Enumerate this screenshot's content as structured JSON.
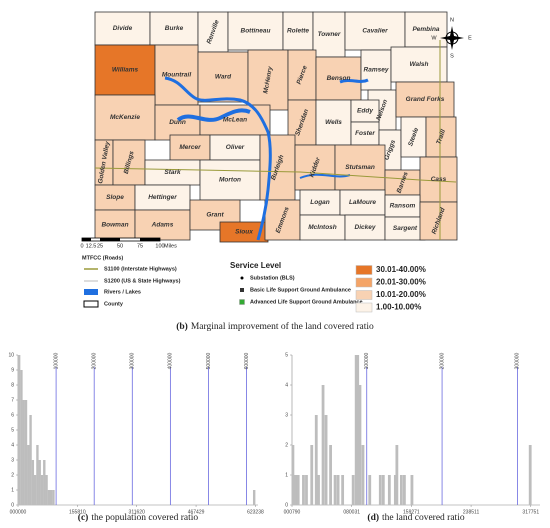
{
  "map": {
    "counties": [
      {
        "name": "Divide",
        "color": "#fdf3e8"
      },
      {
        "name": "Burke",
        "color": "#fdf3e8"
      },
      {
        "name": "Renville",
        "color": "#fdf3e8"
      },
      {
        "name": "Bottineau",
        "color": "#fdf3e8"
      },
      {
        "name": "Rolette",
        "color": "#fdf3e8"
      },
      {
        "name": "Towner",
        "color": "#fdf3e8"
      },
      {
        "name": "Cavalier",
        "color": "#fdf3e8"
      },
      {
        "name": "Pembina",
        "color": "#fdf3e8"
      },
      {
        "name": "Williams",
        "color": "#e67628"
      },
      {
        "name": "Mountrail",
        "color": "#f8d2b3"
      },
      {
        "name": "Ward",
        "color": "#f8d2b3"
      },
      {
        "name": "McHenry",
        "color": "#f8d2b3"
      },
      {
        "name": "Pierce",
        "color": "#f8d2b3"
      },
      {
        "name": "Benson",
        "color": "#f8d2b3"
      },
      {
        "name": "Ramsey",
        "color": "#fdf3e8"
      },
      {
        "name": "Walsh",
        "color": "#fdf3e8"
      },
      {
        "name": "Nelson",
        "color": "#fdf3e8"
      },
      {
        "name": "Grand Forks",
        "color": "#f8d2b3"
      },
      {
        "name": "McKenzie",
        "color": "#f8d2b3"
      },
      {
        "name": "Dunn",
        "color": "#f8d2b3"
      },
      {
        "name": "McLean",
        "color": "#f8d2b3"
      },
      {
        "name": "Mercer",
        "color": "#f8d2b3"
      },
      {
        "name": "Oliver",
        "color": "#fdf3e8"
      },
      {
        "name": "Sheridan",
        "color": "#f8d2b3"
      },
      {
        "name": "Wells",
        "color": "#fdf3e8"
      },
      {
        "name": "Eddy",
        "color": "#fdf3e8"
      },
      {
        "name": "Foster",
        "color": "#fdf3e8"
      },
      {
        "name": "Griggs",
        "color": "#fdf3e8"
      },
      {
        "name": "Steele",
        "color": "#fdf3e8"
      },
      {
        "name": "Traill",
        "color": "#f8d2b3"
      },
      {
        "name": "Golden Valley",
        "color": "#f8d2b3"
      },
      {
        "name": "Billings",
        "color": "#f8d2b3"
      },
      {
        "name": "Stark",
        "color": "#fdf3e8"
      },
      {
        "name": "Morton",
        "color": "#fdf3e8"
      },
      {
        "name": "Burleigh",
        "color": "#f8d2b3"
      },
      {
        "name": "Kidder",
        "color": "#f8d2b3"
      },
      {
        "name": "Stutsman",
        "color": "#f8d2b3"
      },
      {
        "name": "Barnes",
        "color": "#f8d2b3"
      },
      {
        "name": "Cass",
        "color": "#f8d2b3"
      },
      {
        "name": "Slope",
        "color": "#f8d2b3"
      },
      {
        "name": "Hettinger",
        "color": "#fdf3e8"
      },
      {
        "name": "Bowman",
        "color": "#f8d2b3"
      },
      {
        "name": "Adams",
        "color": "#f8d2b3"
      },
      {
        "name": "Grant",
        "color": "#f8d2b3"
      },
      {
        "name": "Sioux",
        "color": "#e67628"
      },
      {
        "name": "Emmons",
        "color": "#f8d2b3"
      },
      {
        "name": "Logan",
        "color": "#fdf3e8"
      },
      {
        "name": "McIntosh",
        "color": "#fdf3e8"
      },
      {
        "name": "LaMoure",
        "color": "#fdf3e8"
      },
      {
        "name": "Dickey",
        "color": "#fdf3e8"
      },
      {
        "name": "Ransom",
        "color": "#fdf3e8"
      },
      {
        "name": "Sargent",
        "color": "#fdf3e8"
      },
      {
        "name": "Richland",
        "color": "#f8d2b3"
      }
    ],
    "compass": {
      "n": "N",
      "s": "S",
      "e": "E",
      "w": "W"
    },
    "scale": {
      "labels": [
        "0",
        "12.5",
        "25",
        "50",
        "75",
        "100"
      ],
      "unit": "Miles"
    }
  },
  "legend": {
    "roads_title": "MTFCC (Roads)",
    "roads": [
      "S1100 (Interstate Highways)",
      "S1200 (US & State Highways)",
      "Rivers / Lakes",
      "County"
    ],
    "service_title": "Service Level",
    "service": [
      "Substation (BLS)",
      "Basic Life Support Ground Ambulance",
      "Advanced Life Support Ground Ambulance"
    ],
    "classes": [
      {
        "label": "30.01-40.00%",
        "color": "#e67628"
      },
      {
        "label": "20.01-30.00%",
        "color": "#f4a467"
      },
      {
        "label": "10.01-20.00%",
        "color": "#f8d2b3"
      },
      {
        "label": "1.00-10.00%",
        "color": "#fdf3e8"
      }
    ]
  },
  "caption": {
    "label": "(b)",
    "text": "Marginal improvement of the land covered ratio"
  },
  "chart_data": [
    {
      "type": "bar",
      "color": "#bdbdbd",
      "x": [
        3000,
        9000,
        15000,
        21000,
        27000,
        33000,
        39000,
        45000,
        51000,
        57000,
        63000,
        69000,
        75000,
        81000,
        87000,
        93000,
        620000
      ],
      "values": [
        10,
        9,
        7,
        7,
        4,
        6,
        3,
        2,
        4,
        3,
        2,
        3,
        2,
        1,
        1,
        1,
        1
      ],
      "xlim": [
        0,
        630000
      ],
      "ylim": [
        0,
        10
      ],
      "xticks": [
        {
          "value": 0,
          "label": "000000"
        },
        155810,
        311620,
        467429,
        623238
      ],
      "yticks": [
        0,
        1,
        2,
        3,
        4,
        5,
        6,
        7,
        8,
        9,
        10
      ],
      "ref_lines": {
        "color": "#6a6ae0",
        "values": [
          100000,
          200000,
          300000,
          400000,
          500000,
          600000
        ]
      },
      "caption": {
        "label": "(c)",
        "text": "the population covered ratio"
      }
    },
    {
      "type": "bar",
      "color": "#bdbdbd",
      "x": [
        2000,
        4000,
        6000,
        9000,
        16000,
        20000,
        27000,
        33000,
        36000,
        42000,
        46000,
        52000,
        58000,
        62000,
        68000,
        82000,
        86000,
        88000,
        91000,
        95000,
        104000,
        118000,
        122000,
        130000,
        138000,
        140000,
        146000,
        150000,
        160000,
        317000
      ],
      "values": [
        2,
        1,
        1,
        1,
        1,
        1,
        2,
        3,
        1,
        4,
        3,
        2,
        1,
        1,
        1,
        1,
        5,
        5,
        4,
        2,
        1,
        1,
        1,
        1,
        1,
        2,
        1,
        1,
        1,
        2
      ],
      "xlim": [
        790,
        330000
      ],
      "ylim": [
        0,
        5
      ],
      "xticks": [
        {
          "value": 790,
          "label": "000790"
        },
        {
          "value": 80031,
          "label": "080031"
        },
        159271,
        238511,
        317751
      ],
      "yticks": [
        0,
        1,
        2,
        3,
        4,
        5
      ],
      "ref_lines": {
        "color": "#6a6ae0",
        "values": [
          100000,
          200000,
          300000
        ]
      },
      "caption": {
        "label": "(d)",
        "text": "the land covered ratio"
      }
    }
  ]
}
